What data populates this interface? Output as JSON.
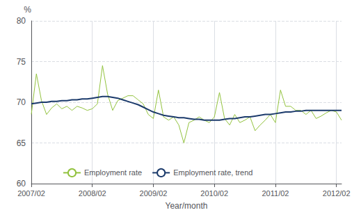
{
  "chart_data": {
    "type": "line",
    "xlabel": "Year/month",
    "ylabel": "%",
    "categories": [
      "2007/02",
      null,
      null,
      null,
      null,
      null,
      null,
      null,
      null,
      null,
      null,
      null,
      "2008/02",
      null,
      null,
      null,
      null,
      null,
      null,
      null,
      null,
      null,
      null,
      null,
      "2009/02",
      null,
      null,
      null,
      null,
      null,
      null,
      null,
      null,
      null,
      null,
      null,
      "2010/02",
      null,
      null,
      null,
      null,
      null,
      null,
      null,
      null,
      null,
      null,
      null,
      "2011/02",
      null,
      null,
      null,
      null,
      null,
      null,
      null,
      null,
      null,
      null,
      null,
      "2012/02",
      null
    ],
    "series": [
      {
        "name": "Employment rate",
        "color": "#92c23e",
        "values": [
          68.5,
          73.5,
          70.2,
          68.5,
          69.3,
          69.8,
          69.2,
          69.5,
          69.0,
          69.5,
          69.3,
          69.0,
          69.2,
          69.8,
          74.5,
          71.0,
          69.0,
          70.2,
          70.5,
          70.8,
          70.8,
          70.3,
          69.8,
          68.5,
          68.0,
          71.5,
          68.2,
          67.8,
          68.2,
          67.2,
          65.0,
          67.5,
          67.8,
          68.2,
          67.8,
          67.5,
          68.2,
          71.2,
          68.0,
          67.2,
          68.5,
          67.5,
          67.8,
          68.2,
          66.5,
          67.2,
          67.8,
          68.5,
          67.5,
          71.5,
          69.5,
          69.5,
          69.0,
          69.0,
          68.5,
          69.0,
          68.0,
          68.3,
          68.7,
          69.0,
          68.8,
          67.8
        ]
      },
      {
        "name": "Employment rate, trend",
        "color": "#1b3a6b",
        "values": [
          69.8,
          69.9,
          70.0,
          70.0,
          70.1,
          70.1,
          70.2,
          70.2,
          70.3,
          70.3,
          70.4,
          70.4,
          70.5,
          70.6,
          70.7,
          70.7,
          70.6,
          70.5,
          70.3,
          70.1,
          69.9,
          69.7,
          69.4,
          69.1,
          68.8,
          68.6,
          68.4,
          68.3,
          68.2,
          68.1,
          68.1,
          68.0,
          67.9,
          67.9,
          67.8,
          67.8,
          67.8,
          67.8,
          67.9,
          68.0,
          68.0,
          68.1,
          68.2,
          68.2,
          68.3,
          68.4,
          68.5,
          68.5,
          68.6,
          68.7,
          68.8,
          68.8,
          68.9,
          68.9,
          69.0,
          69.0,
          69.0,
          69.0,
          69.0,
          69.0,
          69.0,
          69.0
        ]
      }
    ],
    "ylim": [
      60,
      80
    ],
    "yticks": [
      60,
      65,
      70,
      75,
      80
    ],
    "grid": true,
    "legend": "lower left"
  }
}
